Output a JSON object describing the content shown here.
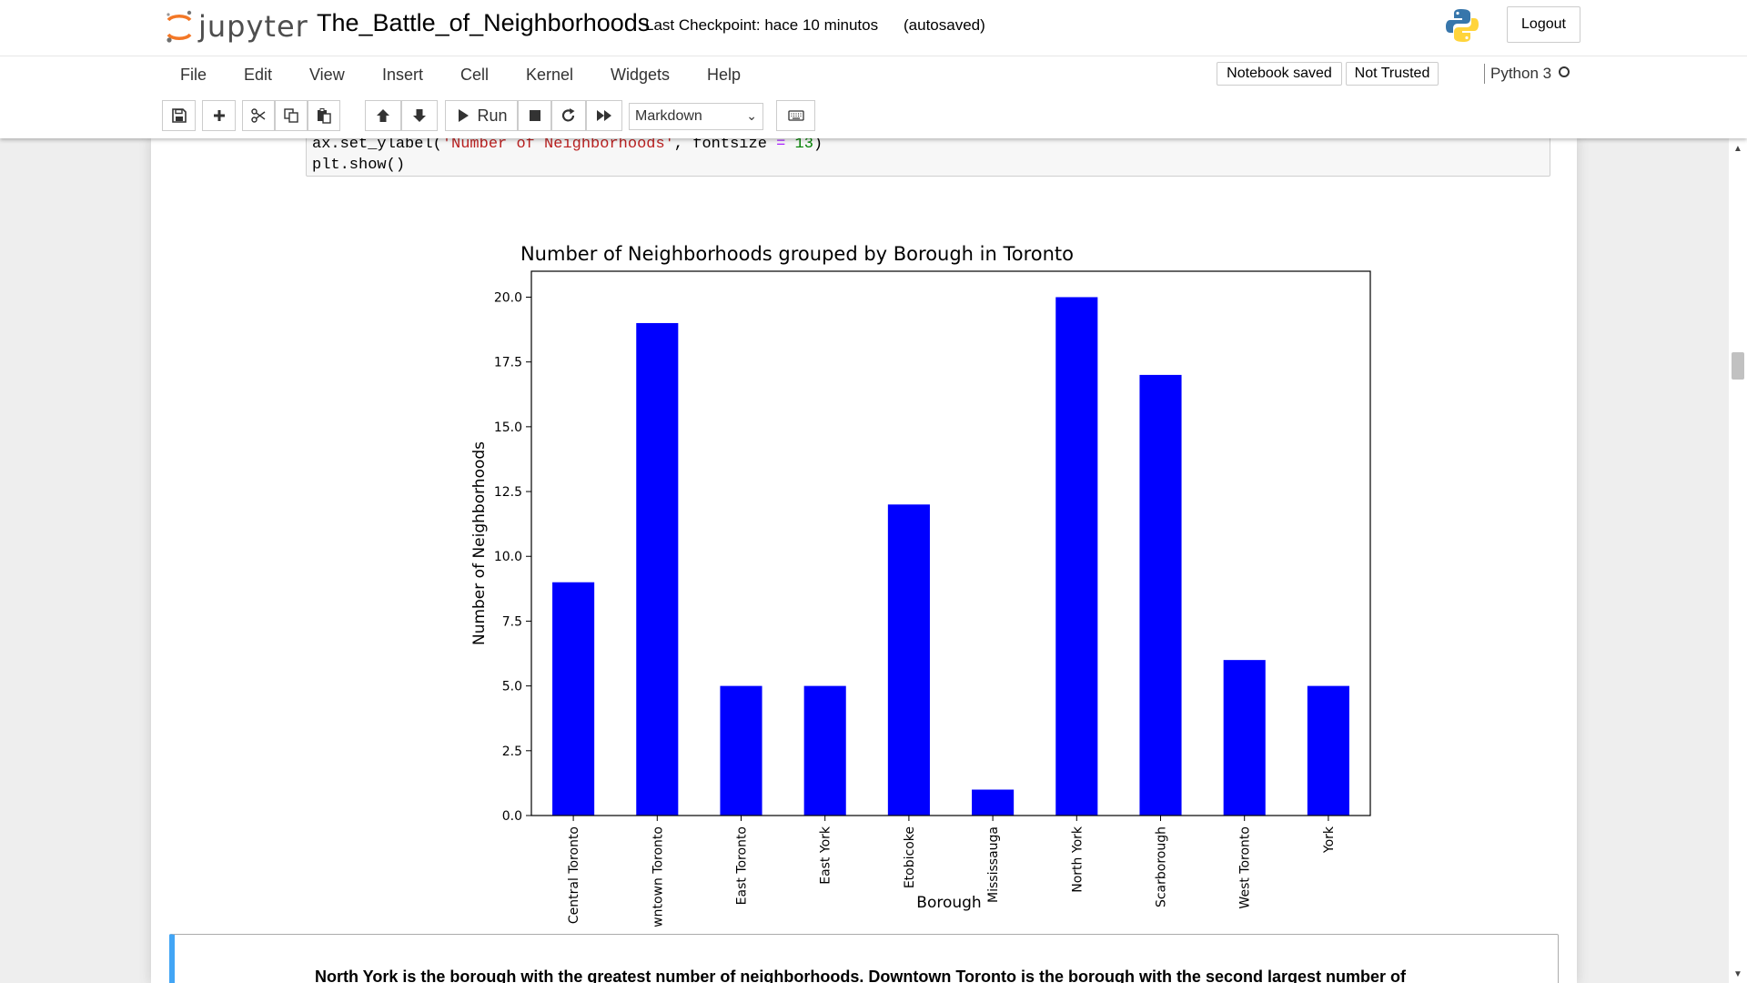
{
  "header": {
    "logo_text": "jupyter",
    "notebook_name": "The_Battle_of_Neighborhoods",
    "checkpoint": "Last Checkpoint: hace 10 minutos",
    "autosave": "(autosaved)",
    "logout_label": "Logout"
  },
  "menu": {
    "items": [
      "File",
      "Edit",
      "View",
      "Insert",
      "Cell",
      "Kernel",
      "Widgets",
      "Help"
    ],
    "notebook_saved": "Notebook saved",
    "not_trusted": "Not Trusted",
    "kernel_name": "Python 3"
  },
  "toolbar": {
    "run_label": "Run",
    "cell_type": "Markdown",
    "icons": [
      "save-icon",
      "plus-icon",
      "scissors-icon",
      "copy-icon",
      "paste-icon",
      "arrow-up-icon",
      "arrow-down-icon",
      "play-icon",
      "stop-icon",
      "restart-icon",
      "fast-forward-icon",
      "keyboard-icon"
    ]
  },
  "code_cell": {
    "line1": {
      "prefix": "ax.set_ylabel(",
      "string": "'Number of Neighborhoods'",
      "mid": ", fontsize ",
      "op": "=",
      "num": "13",
      "suffix": ")"
    },
    "line2": "plt.show()"
  },
  "chart_data": {
    "type": "bar",
    "title": "Number of Neighborhoods grouped by Borough in Toronto",
    "xlabel": "Borough",
    "ylabel": "Number of Neighborhoods",
    "categories": [
      "Central Toronto",
      "Downtown Toronto",
      "East Toronto",
      "East York",
      "Etobicoke",
      "Mississauga",
      "North York",
      "Scarborough",
      "West Toronto",
      "York"
    ],
    "values": [
      9,
      19,
      5,
      5,
      12,
      1,
      20,
      17,
      6,
      5
    ],
    "ylim": [
      0,
      21
    ],
    "yticks": [
      "0.0",
      "2.5",
      "5.0",
      "7.5",
      "10.0",
      "12.5",
      "15.0",
      "17.5",
      "20.0"
    ],
    "bar_color": "#0000ff",
    "grid": false,
    "legend": "none"
  },
  "markdown_cell": {
    "text": "North York is the borough with the greatest number of neighborhoods. Downtown Toronto is the borough with the second largest number of"
  },
  "scrollbar": {
    "position_fraction": 0.25
  }
}
